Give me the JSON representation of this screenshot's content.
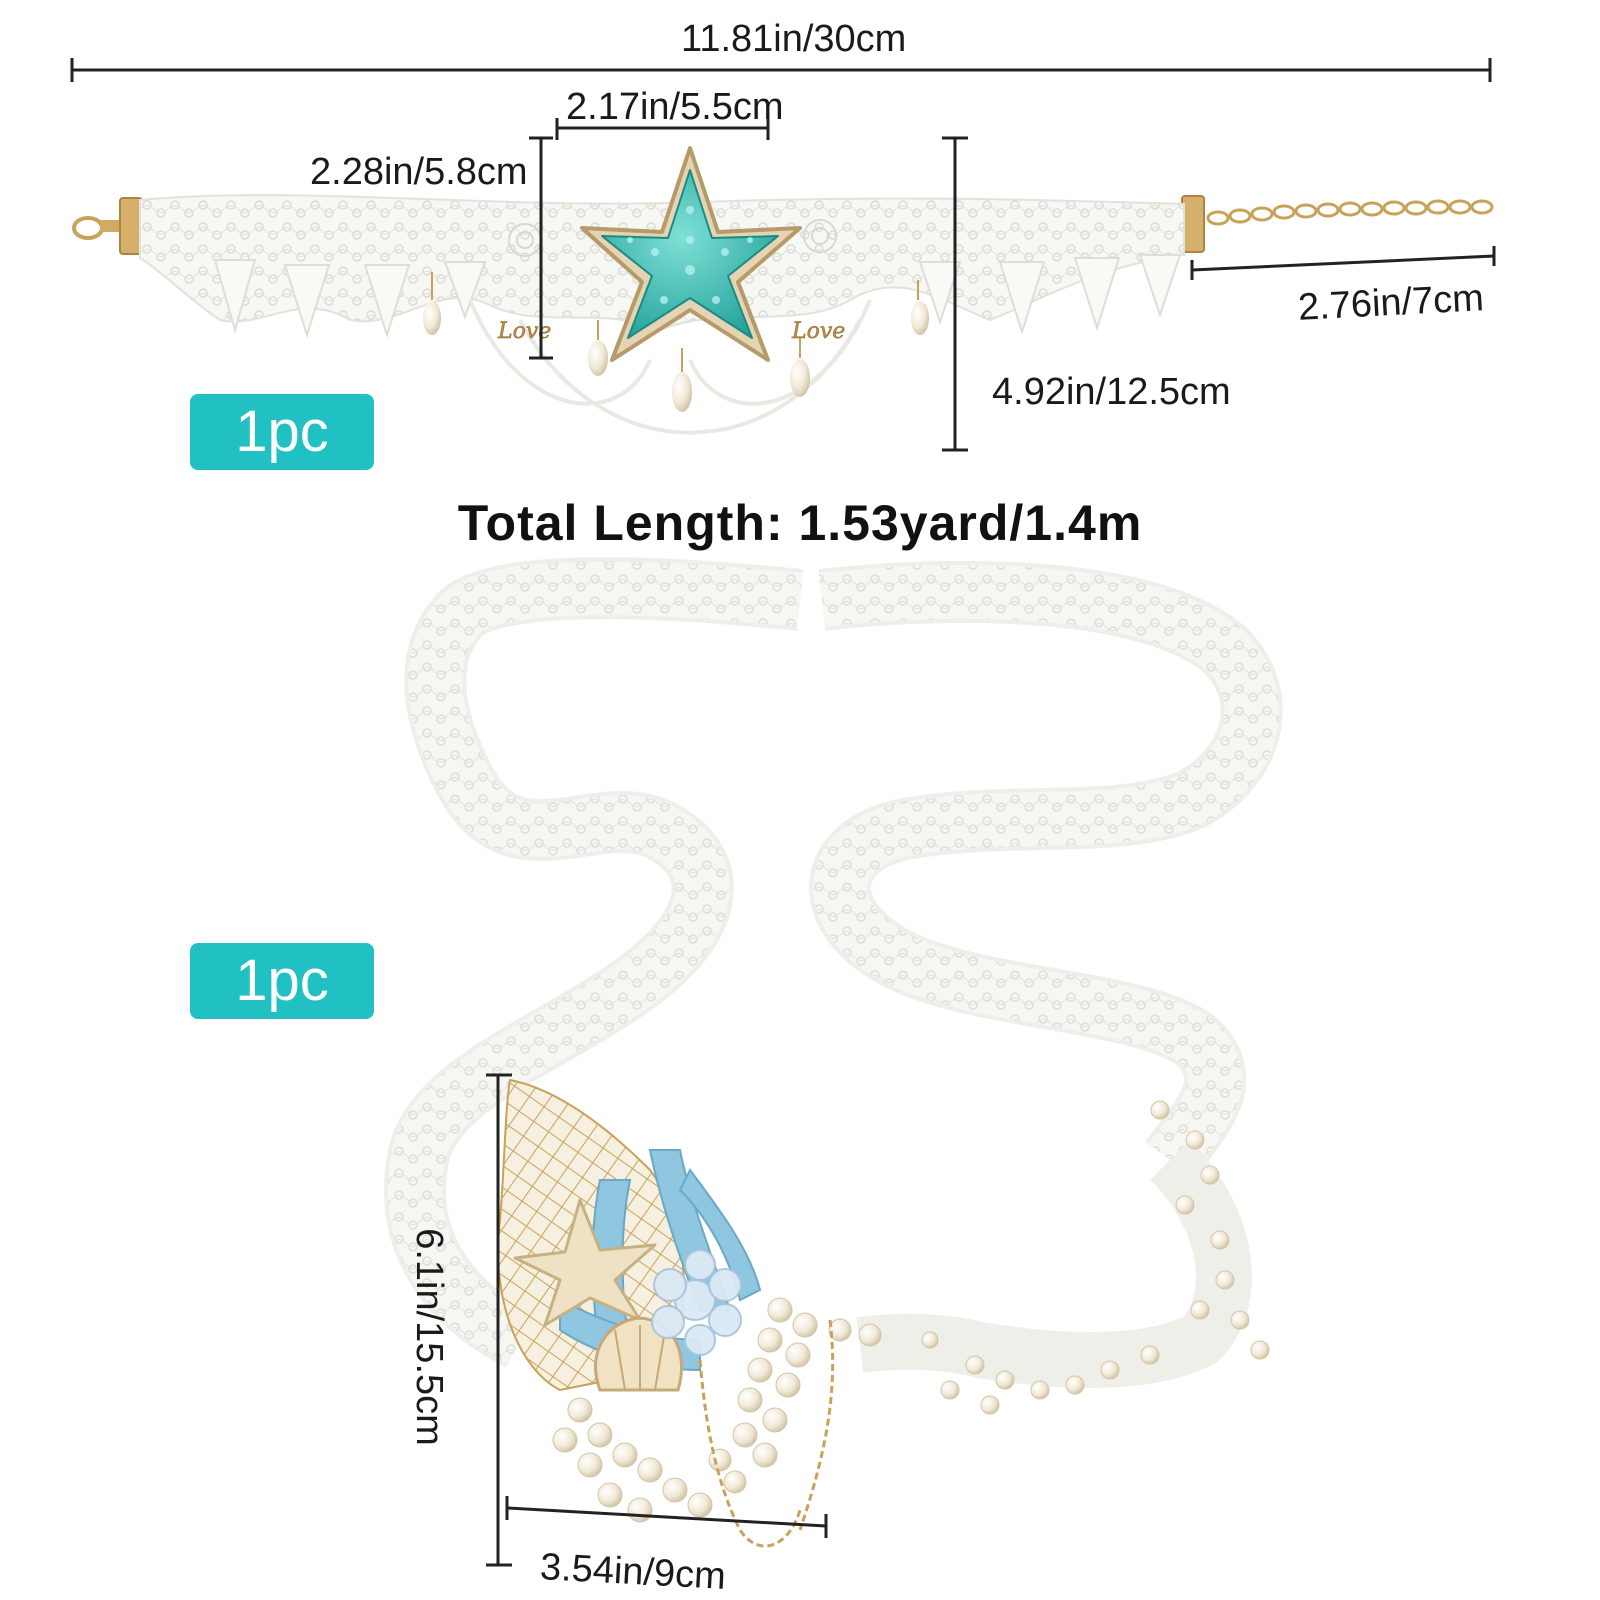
{
  "product_1": {
    "dimensions": {
      "overall_width": "11.81in/30cm",
      "starfish_width": "2.17in/5.5cm",
      "starfish_height": "2.28in/5.8cm",
      "extender_chain": "2.76in/7cm",
      "overall_height": "4.92in/12.5cm"
    },
    "quantity_badge": "1pc",
    "charm_text": "Love"
  },
  "total_length": "Total Length: 1.53yard/1.4m",
  "product_2": {
    "quantity_badge": "1pc",
    "dimensions": {
      "ornament_height": "6.1in/15.5cm",
      "ornament_width": "3.54in/9cm"
    }
  },
  "colors": {
    "badge": "#21c0c2",
    "starfish": "#2fb8b0",
    "lace": "#f4f4f0",
    "gold": "#c9a25a",
    "pearl": "#f3ead8",
    "coral": "#8fc6e0"
  }
}
